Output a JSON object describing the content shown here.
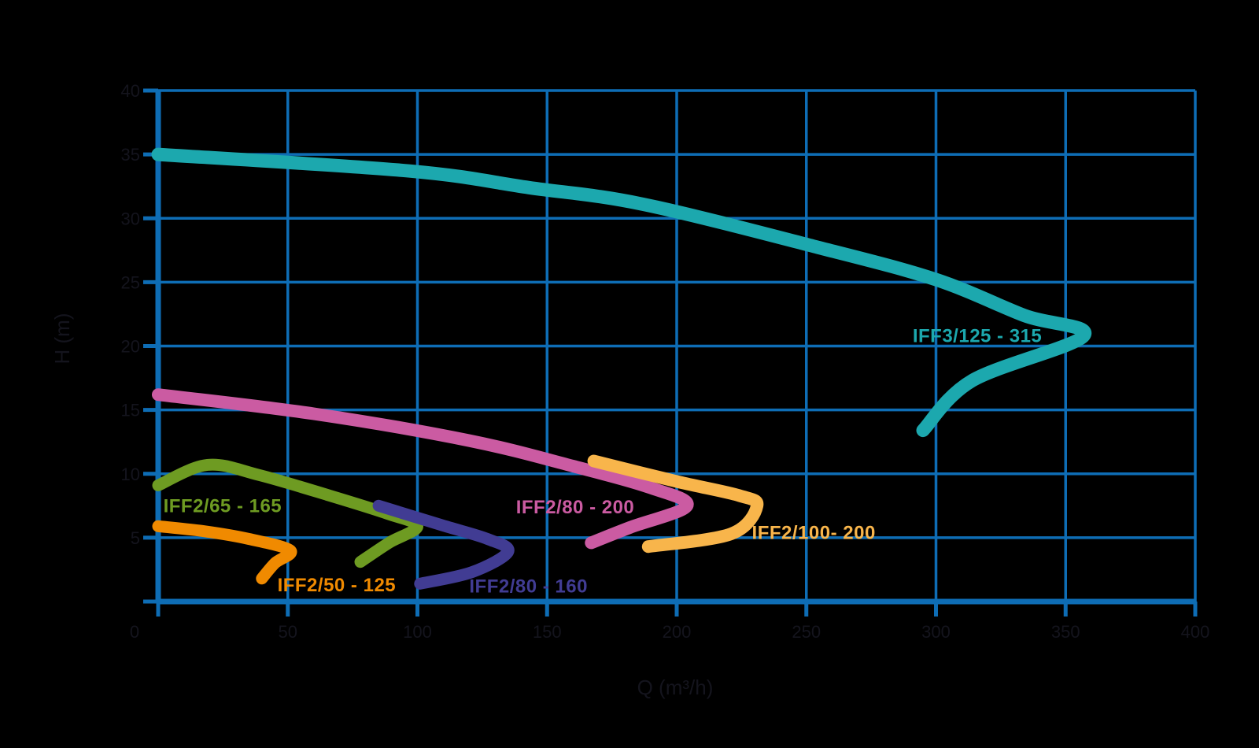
{
  "page": {
    "background": "#000000"
  },
  "chart_data": {
    "type": "line",
    "title": "",
    "xlabel": "Q (m³/h)",
    "ylabel": "H (m)",
    "xlim": [
      0,
      400
    ],
    "ylim": [
      0,
      40
    ],
    "xtick_step": 50,
    "ytick_step": 5,
    "xticks": [
      0,
      50,
      100,
      150,
      200,
      250,
      300,
      350,
      400
    ],
    "yticks": [
      5,
      10,
      15,
      20,
      25,
      30,
      35,
      40
    ],
    "grid": true,
    "grid_color": "#0E6DB5",
    "axis_color": "#0E6DB5",
    "tick_label_color": "#14141D",
    "legend_position": "labels-on-curves",
    "series": [
      {
        "name": "IFF3/125 - 315",
        "color": "#1CA8AE",
        "stroke_width": 17,
        "label_pos": [
          291,
          20.3
        ],
        "points": [
          [
            0,
            35.0
          ],
          [
            97,
            33.7
          ],
          [
            143,
            32.4
          ],
          [
            187,
            31.1
          ],
          [
            255,
            27.7
          ],
          [
            300,
            25.2
          ],
          [
            334,
            22.4
          ],
          [
            357,
            20.8
          ],
          [
            314,
            17.3
          ],
          [
            295,
            13.4
          ]
        ]
      },
      {
        "name": "IFF2/80 - 200",
        "color": "#CB5BA2",
        "stroke_width": 16,
        "label_pos": [
          138,
          6.9
        ],
        "points": [
          [
            0,
            16.2
          ],
          [
            60,
            14.7
          ],
          [
            120,
            12.6
          ],
          [
            160,
            10.6
          ],
          [
            190,
            8.9
          ],
          [
            204,
            7.5
          ],
          [
            182,
            5.8
          ],
          [
            167,
            4.6
          ]
        ]
      },
      {
        "name": "IFF2/100- 200",
        "color": "#F8B54B",
        "stroke_width": 16,
        "label_pos": [
          229,
          4.9
        ],
        "points": [
          [
            168,
            11.0
          ],
          [
            200,
            9.4
          ],
          [
            224,
            8.3
          ],
          [
            231,
            7.5
          ],
          [
            221,
            5.3
          ],
          [
            189,
            4.3
          ]
        ]
      },
      {
        "name": "IFF2/65 - 165",
        "color": "#6E9B22",
        "stroke_width": 15,
        "label_pos": [
          2,
          7.0
        ],
        "points": [
          [
            0,
            9.1
          ],
          [
            19,
            10.7
          ],
          [
            39,
            9.9
          ],
          [
            66,
            8.3
          ],
          [
            88,
            6.9
          ],
          [
            100,
            5.9
          ],
          [
            89,
            4.6
          ],
          [
            78,
            3.1
          ]
        ]
      },
      {
        "name": "IFF2/50 - 125",
        "color": "#F08A00",
        "stroke_width": 15,
        "label_pos": [
          46,
          0.8
        ],
        "points": [
          [
            0,
            5.9
          ],
          [
            18,
            5.5
          ],
          [
            35,
            4.9
          ],
          [
            51,
            4.0
          ],
          [
            45,
            3.0
          ],
          [
            40,
            1.8
          ]
        ]
      },
      {
        "name": "IFF2/80 - 160",
        "color": "#413C93",
        "stroke_width": 15,
        "label_pos": [
          120,
          0.7
        ],
        "points": [
          [
            85,
            7.5
          ],
          [
            109,
            6.0
          ],
          [
            127,
            4.9
          ],
          [
            135,
            3.9
          ],
          [
            121,
            2.3
          ],
          [
            101,
            1.4
          ]
        ]
      }
    ]
  }
}
